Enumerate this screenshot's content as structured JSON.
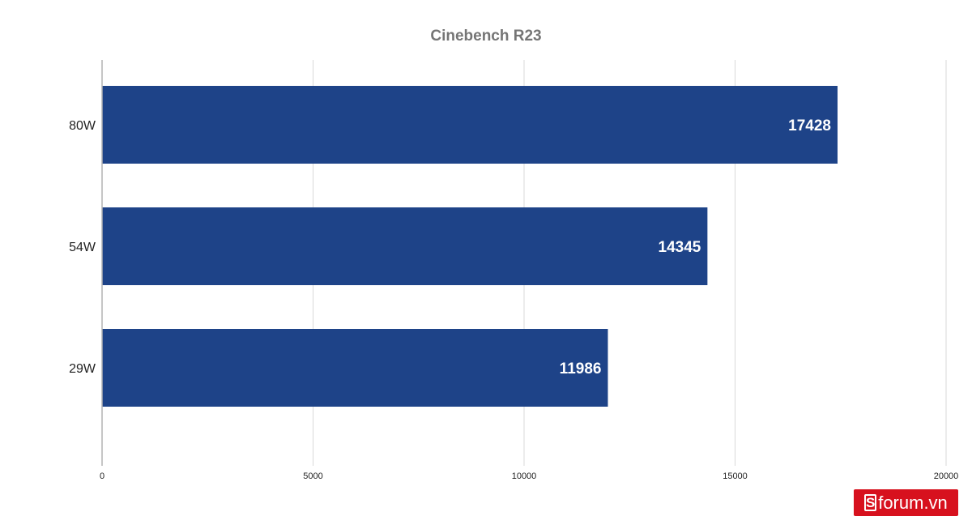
{
  "chart_data": {
    "type": "bar",
    "orientation": "horizontal",
    "title": "Cinebench R23",
    "categories": [
      "80W",
      "54W",
      "29W"
    ],
    "values": [
      17428,
      14345,
      11986
    ],
    "data_labels": [
      "17428",
      "14345",
      "11986"
    ],
    "xlim": [
      0,
      20000
    ],
    "x_ticks": [
      0,
      5000,
      10000,
      15000,
      20000
    ],
    "x_tick_labels": [
      "0",
      "5000",
      "10000",
      "15000",
      "20000"
    ],
    "xlabel": "",
    "ylabel": "",
    "grid": true,
    "legend": "none",
    "bar_color": "#1e4388"
  },
  "watermark": {
    "mark": "S",
    "text": "forum.vn",
    "color": "#d7111e"
  }
}
